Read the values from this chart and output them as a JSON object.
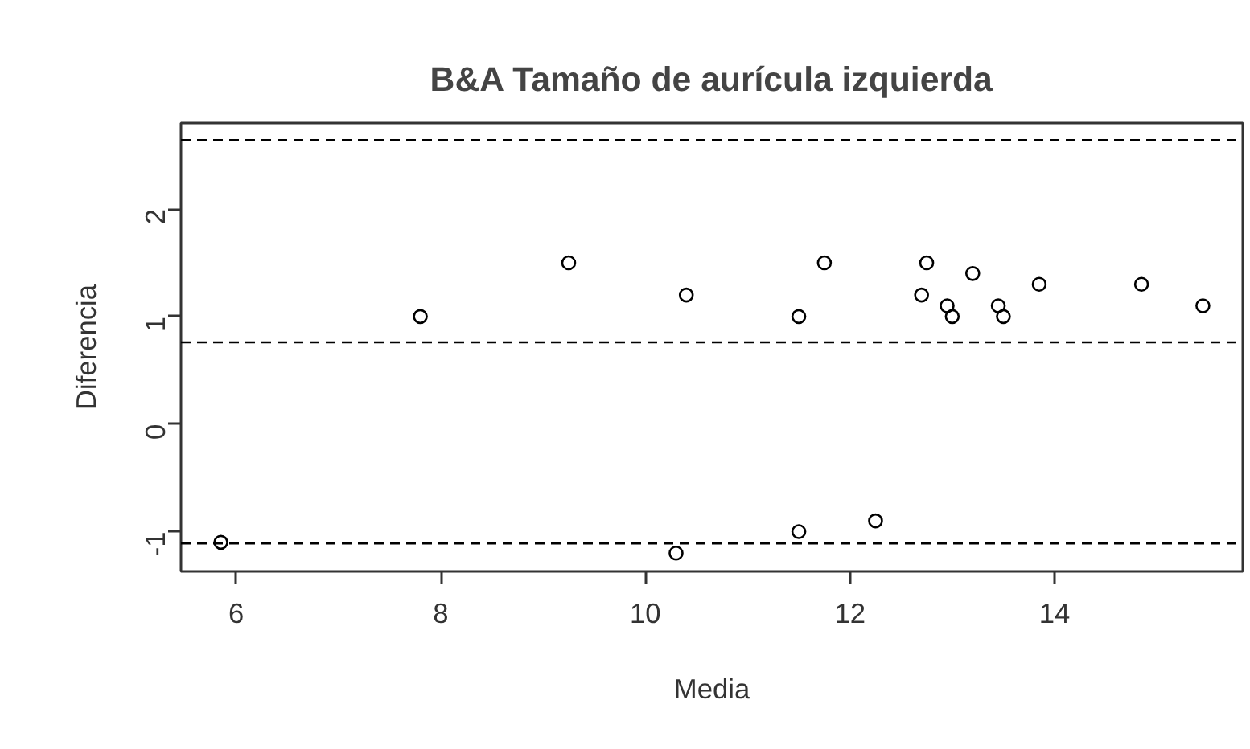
{
  "chart_data": {
    "type": "scatter",
    "title": "B&A Tamaño de aurícula izquierda",
    "xlabel": "Media",
    "ylabel": "Diferencia",
    "x": [
      5.85,
      7.8,
      9.25,
      10.4,
      10.3,
      11.5,
      11.5,
      11.75,
      12.25,
      12.7,
      12.75,
      12.95,
      13.0,
      13.2,
      13.45,
      13.5,
      13.85,
      14.85,
      15.45
    ],
    "series": [
      {
        "color": "#000000",
        "values": [
          -1.1,
          1.0,
          1.5,
          1.2,
          -1.2,
          1.0,
          -1.0,
          1.5,
          -0.9,
          1.2,
          1.5,
          1.1,
          1.0,
          1.4,
          1.1,
          1.0,
          1.3,
          1.3,
          1.1
        ]
      }
    ],
    "xlim": [
      5.46,
      15.84
    ],
    "ylim": [
      -1.37,
      2.8
    ],
    "xticks": [
      6,
      8,
      10,
      12,
      14
    ],
    "yticks": [
      {
        "value": -1,
        "label": "-1"
      },
      0,
      1,
      2
    ],
    "ref_lines": [
      {
        "axis": "y",
        "value": 2.64,
        "label": null,
        "line_style": "dashed"
      },
      {
        "axis": "y",
        "value": 0.76,
        "label": null,
        "line_style": "dashed"
      },
      {
        "axis": "y",
        "value": -1.11,
        "label": null,
        "line_style": "dashed"
      }
    ],
    "marker": "circle",
    "grid": false
  }
}
